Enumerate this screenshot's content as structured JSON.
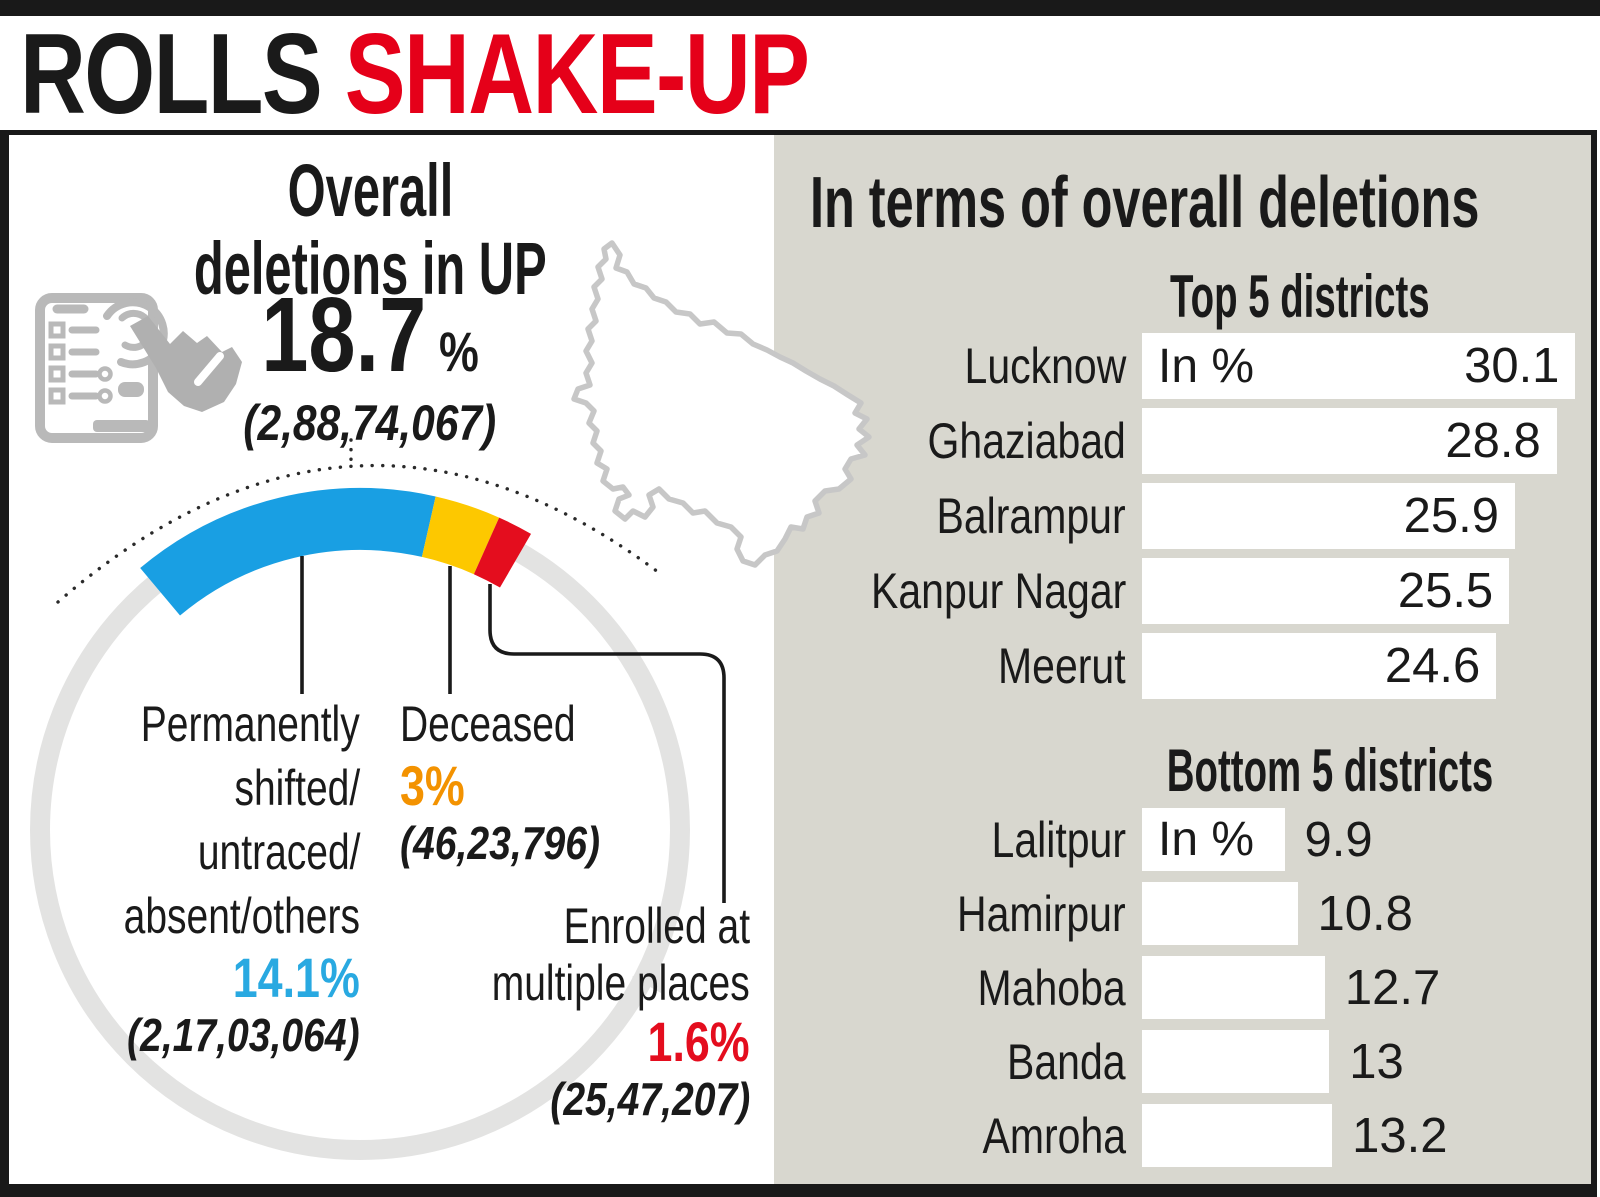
{
  "masthead": {
    "title_black": "ROLLS",
    "title_red": "SHAKE-UP"
  },
  "left_panel": {
    "title_lines": [
      "Overall",
      "deletions in UP"
    ],
    "total_pct": "18.7",
    "total_pct_unit": "%",
    "total_count": "(2,88,74,067)",
    "icon": "tablet-touch-icon"
  },
  "right_panel": {
    "title": "In terms of overall deletions"
  },
  "chart_data": [
    {
      "type": "pie",
      "style": "arc-donut",
      "title": "Overall deletions in UP",
      "total_value": 18.7,
      "total_pct_label": "18.7%",
      "total_count_label": "(2,88,74,067)",
      "segments": [
        {
          "label": "Permanently shifted/untraced/absent/others",
          "label_lines": [
            "Permanently",
            "shifted/",
            "untraced/",
            "absent/others"
          ],
          "value": 14.1,
          "pct_label": "14.1%",
          "count_label": "(2,17,03,064)",
          "color": "#199fe3",
          "pct_text_color": "#29a9e1"
        },
        {
          "label": "Deceased",
          "label_lines": [
            "Deceased"
          ],
          "value": 3,
          "pct_label": "3%",
          "count_label": "(46,23,796)",
          "color": "#fdc800",
          "pct_text_color": "#f39200"
        },
        {
          "label": "Enrolled at multiple places",
          "label_lines": [
            "Enrolled at",
            "multiple places"
          ],
          "value": 1.6,
          "pct_label": "1.6%",
          "count_label": "(25,47,207)",
          "color": "#e40d1e",
          "pct_text_color": "#e40d1e"
        }
      ]
    },
    {
      "type": "bar",
      "title": "Top 5 districts",
      "unit_label": "In %",
      "orientation": "horizontal",
      "value_label_position": "inside",
      "bar_color": "#ffffff",
      "categories": [
        "Lucknow",
        "Ghaziabad",
        "Balrampur",
        "Kanpur Nagar",
        "Meerut"
      ],
      "values": [
        30.1,
        28.8,
        25.9,
        25.5,
        24.6
      ]
    },
    {
      "type": "bar",
      "title": "Bottom 5 districts",
      "unit_label": "In %",
      "orientation": "horizontal",
      "value_label_position": "outside",
      "bar_color": "#ffffff",
      "categories": [
        "Lalitpur",
        "Hamirpur",
        "Mahoba",
        "Banda",
        "Amroha"
      ],
      "values": [
        9.9,
        10.8,
        12.7,
        13,
        13.2
      ]
    }
  ]
}
